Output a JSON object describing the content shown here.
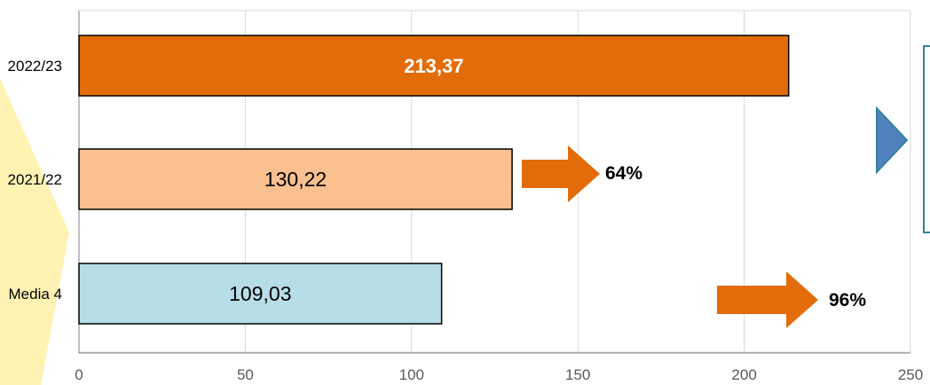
{
  "chart_data": {
    "type": "bar",
    "orientation": "horizontal",
    "categories": [
      "2022/23",
      "2021/22",
      "Media 4"
    ],
    "values": [
      213.37,
      130.22,
      109.03
    ],
    "data_labels": [
      "213,37",
      "130,22",
      "109,03"
    ],
    "bar_colors": [
      "#E36C0A",
      "#FAC090",
      "#B7DEE8"
    ],
    "label_colors": [
      "#FFFFFF",
      "#000000",
      "#000000"
    ],
    "x_ticks": [
      0,
      50,
      100,
      150,
      200,
      250
    ],
    "x_tick_labels": [
      "0",
      "50",
      "100",
      "150",
      "200",
      "250"
    ],
    "xlim": [
      0,
      250
    ],
    "grid": true,
    "title": "",
    "xlabel": "",
    "ylabel": "",
    "annotations": [
      {
        "text": "64%",
        "color": "#E36C0A",
        "row": 1
      },
      {
        "text": "96%",
        "color": "#E36C0A",
        "row": 2
      }
    ]
  },
  "colors": {
    "accent_orange": "#E36C0A",
    "callout_blue": "#31849B",
    "highlight_yellow": "#FFF2B3",
    "gridline": "#D9D9D9",
    "axis": "#808080"
  },
  "icons": {
    "callout_arrow": "triangle-right-icon"
  }
}
